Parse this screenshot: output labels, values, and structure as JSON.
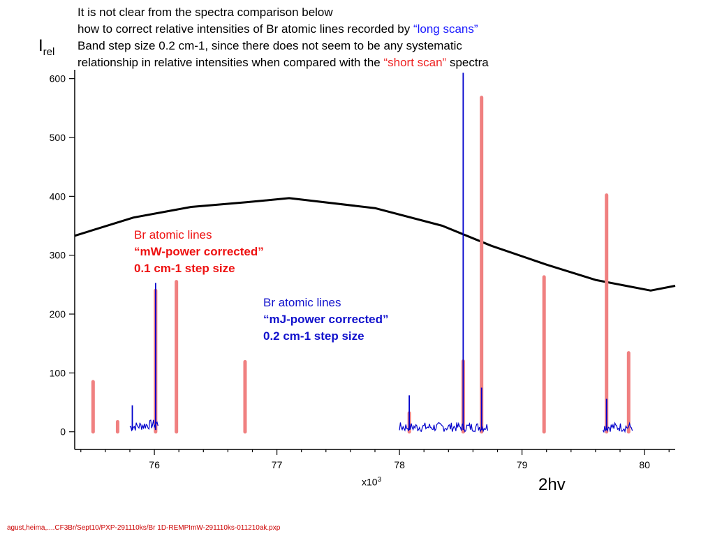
{
  "header": {
    "line1": "It is not clear from the spectra comparison below",
    "line2_pre": "how to correct relative intensities of Br atomic lines recorded by ",
    "line2_em": "“long scans”",
    "line3": "Band  step size 0.2 cm-1, since there does not seem to be any systematic",
    "line4_pre": "relationship in relative intensities when compared with the ",
    "line4_em": "“short scan”",
    "line4_post": " spectra"
  },
  "annotations": {
    "red_line1": "Br atomic lines",
    "red_line2": "“mW-power corrected”",
    "red_line3": "0.1 cm-1 step size",
    "blue_line1": "Br atomic lines",
    "blue_line2": "“mJ-power corrected”",
    "blue_line3": "0.2 cm-1 step size"
  },
  "footer": "agust,heima,....CF3Br/Sept10/PXP-291110ks/Br 1D-REMPImW-291110ks-011210ak.pxp",
  "axes": {
    "y_label_main": "I",
    "y_label_sub": "rel",
    "x_label": "2hv",
    "x_multiplier_base": "x10",
    "x_multiplier_exp": "3"
  },
  "colors": {
    "short_scan": "#f08080",
    "long_scan": "#0000cc",
    "band": "#000000",
    "blue_text": "#1a1aff",
    "red_text": "#ee2222"
  },
  "chart_data": {
    "type": "line",
    "xlabel": "2hv",
    "ylabel": "Irel",
    "x_unit_multiplier": 1000,
    "xlim": [
      75.35,
      80.25
    ],
    "ylim": [
      -30,
      615
    ],
    "x_ticks": [
      76,
      77,
      78,
      79,
      80
    ],
    "y_ticks": [
      0,
      100,
      200,
      300,
      400,
      500,
      600
    ],
    "grid": false,
    "series": [
      {
        "kind": "band",
        "x": [
          75.35,
          75.83,
          76.3,
          76.75,
          77.1,
          77.8,
          78.35,
          78.75,
          79.2,
          79.6,
          80.05,
          80.25
        ],
        "y": [
          333,
          364,
          382,
          390,
          397,
          380,
          350,
          316,
          284,
          258,
          240,
          248
        ]
      },
      {
        "kind": "short_scan_lines",
        "x": [
          75.5,
          75.7,
          76.01,
          76.18,
          76.74,
          78.08,
          78.52,
          78.67,
          79.18,
          79.69,
          79.87
        ],
        "y": [
          85,
          17,
          240,
          255,
          119,
          32,
          120,
          568,
          263,
          402,
          134
        ]
      },
      {
        "kind": "long_scan_lines",
        "x": [
          75.82,
          76.01,
          78.08,
          78.52,
          78.67,
          79.69
        ],
        "y": [
          45,
          253,
          62,
          610,
          75,
          56
        ]
      },
      {
        "kind": "long_scan_noise_segments",
        "segments": [
          [
            75.8,
            76.03
          ],
          [
            78.0,
            78.72
          ],
          [
            79.66,
            79.9
          ]
        ]
      }
    ]
  }
}
